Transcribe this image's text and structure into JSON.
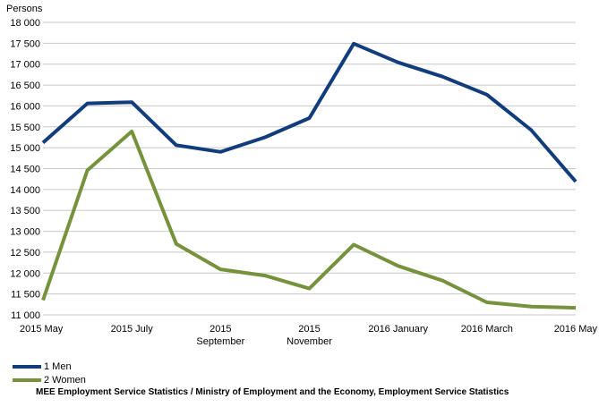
{
  "chart_data": {
    "type": "line",
    "ylabel": "Persons",
    "ylim": [
      11000,
      18000
    ],
    "ytick_step": 500,
    "yticks": [
      "11 000",
      "11 500",
      "12 000",
      "12 500",
      "13 000",
      "13 500",
      "14 000",
      "14 500",
      "15 000",
      "15 500",
      "16 000",
      "16 500",
      "17 000",
      "17 500",
      "18 000"
    ],
    "x_labels": [
      "2015 May",
      "2015 July",
      "2015 September",
      "2015 November",
      "2016 January",
      "2016 March",
      "2016 May"
    ],
    "x_label_lines": [
      [
        "2015 May"
      ],
      [
        "2015 July"
      ],
      [
        "2015",
        "September"
      ],
      [
        "2015",
        "November"
      ],
      [
        "2016 January"
      ],
      [
        "2016 March"
      ],
      [
        "2016 May"
      ]
    ],
    "x_label_index": [
      0,
      2,
      4,
      6,
      8,
      10,
      12
    ],
    "months": 13,
    "grid": "horizontal",
    "legend_position": "bottom-left",
    "series": [
      {
        "name": "1 Men",
        "color": "#123d7d",
        "values": [
          15120,
          16060,
          16090,
          15060,
          14900,
          15250,
          15710,
          17490,
          17040,
          16700,
          16270,
          15420,
          14190
        ]
      },
      {
        "name": "2 Women",
        "color": "#76923c",
        "values": [
          11350,
          14460,
          15390,
          12700,
          12090,
          11940,
          11630,
          12680,
          12170,
          11820,
          11300,
          11200,
          11170
        ]
      }
    ]
  },
  "source_text": "MEE Employment Service Statistics / Ministry of Employment and the Economy, Employment Service Statistics"
}
